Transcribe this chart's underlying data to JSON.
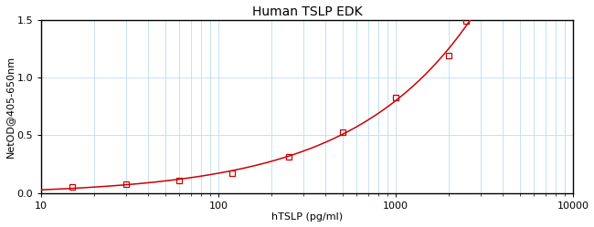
{
  "title": "Human TSLP EDK",
  "xlabel": "hTSLP (pg/ml)",
  "ylabel": "NetOD@405-650nm",
  "xlim": [
    10,
    10000
  ],
  "ylim": [
    0,
    1.5
  ],
  "yticks": [
    0,
    0.5,
    1.0,
    1.5
  ],
  "data_points_x": [
    15,
    30,
    60,
    120,
    250,
    500,
    1000,
    2000,
    2500
  ],
  "data_points_y": [
    0.05,
    0.08,
    0.11,
    0.17,
    0.31,
    0.53,
    0.83,
    1.19,
    1.49
  ],
  "curve_color": "#CC0000",
  "marker_color": "#CC0000",
  "background_color": "#ffffff",
  "grid_color": "#bbddf5",
  "title_fontsize": 10,
  "label_fontsize": 8,
  "tick_fontsize": 8,
  "fig_width": 6.5,
  "fig_height": 2.49,
  "dpi": 100
}
